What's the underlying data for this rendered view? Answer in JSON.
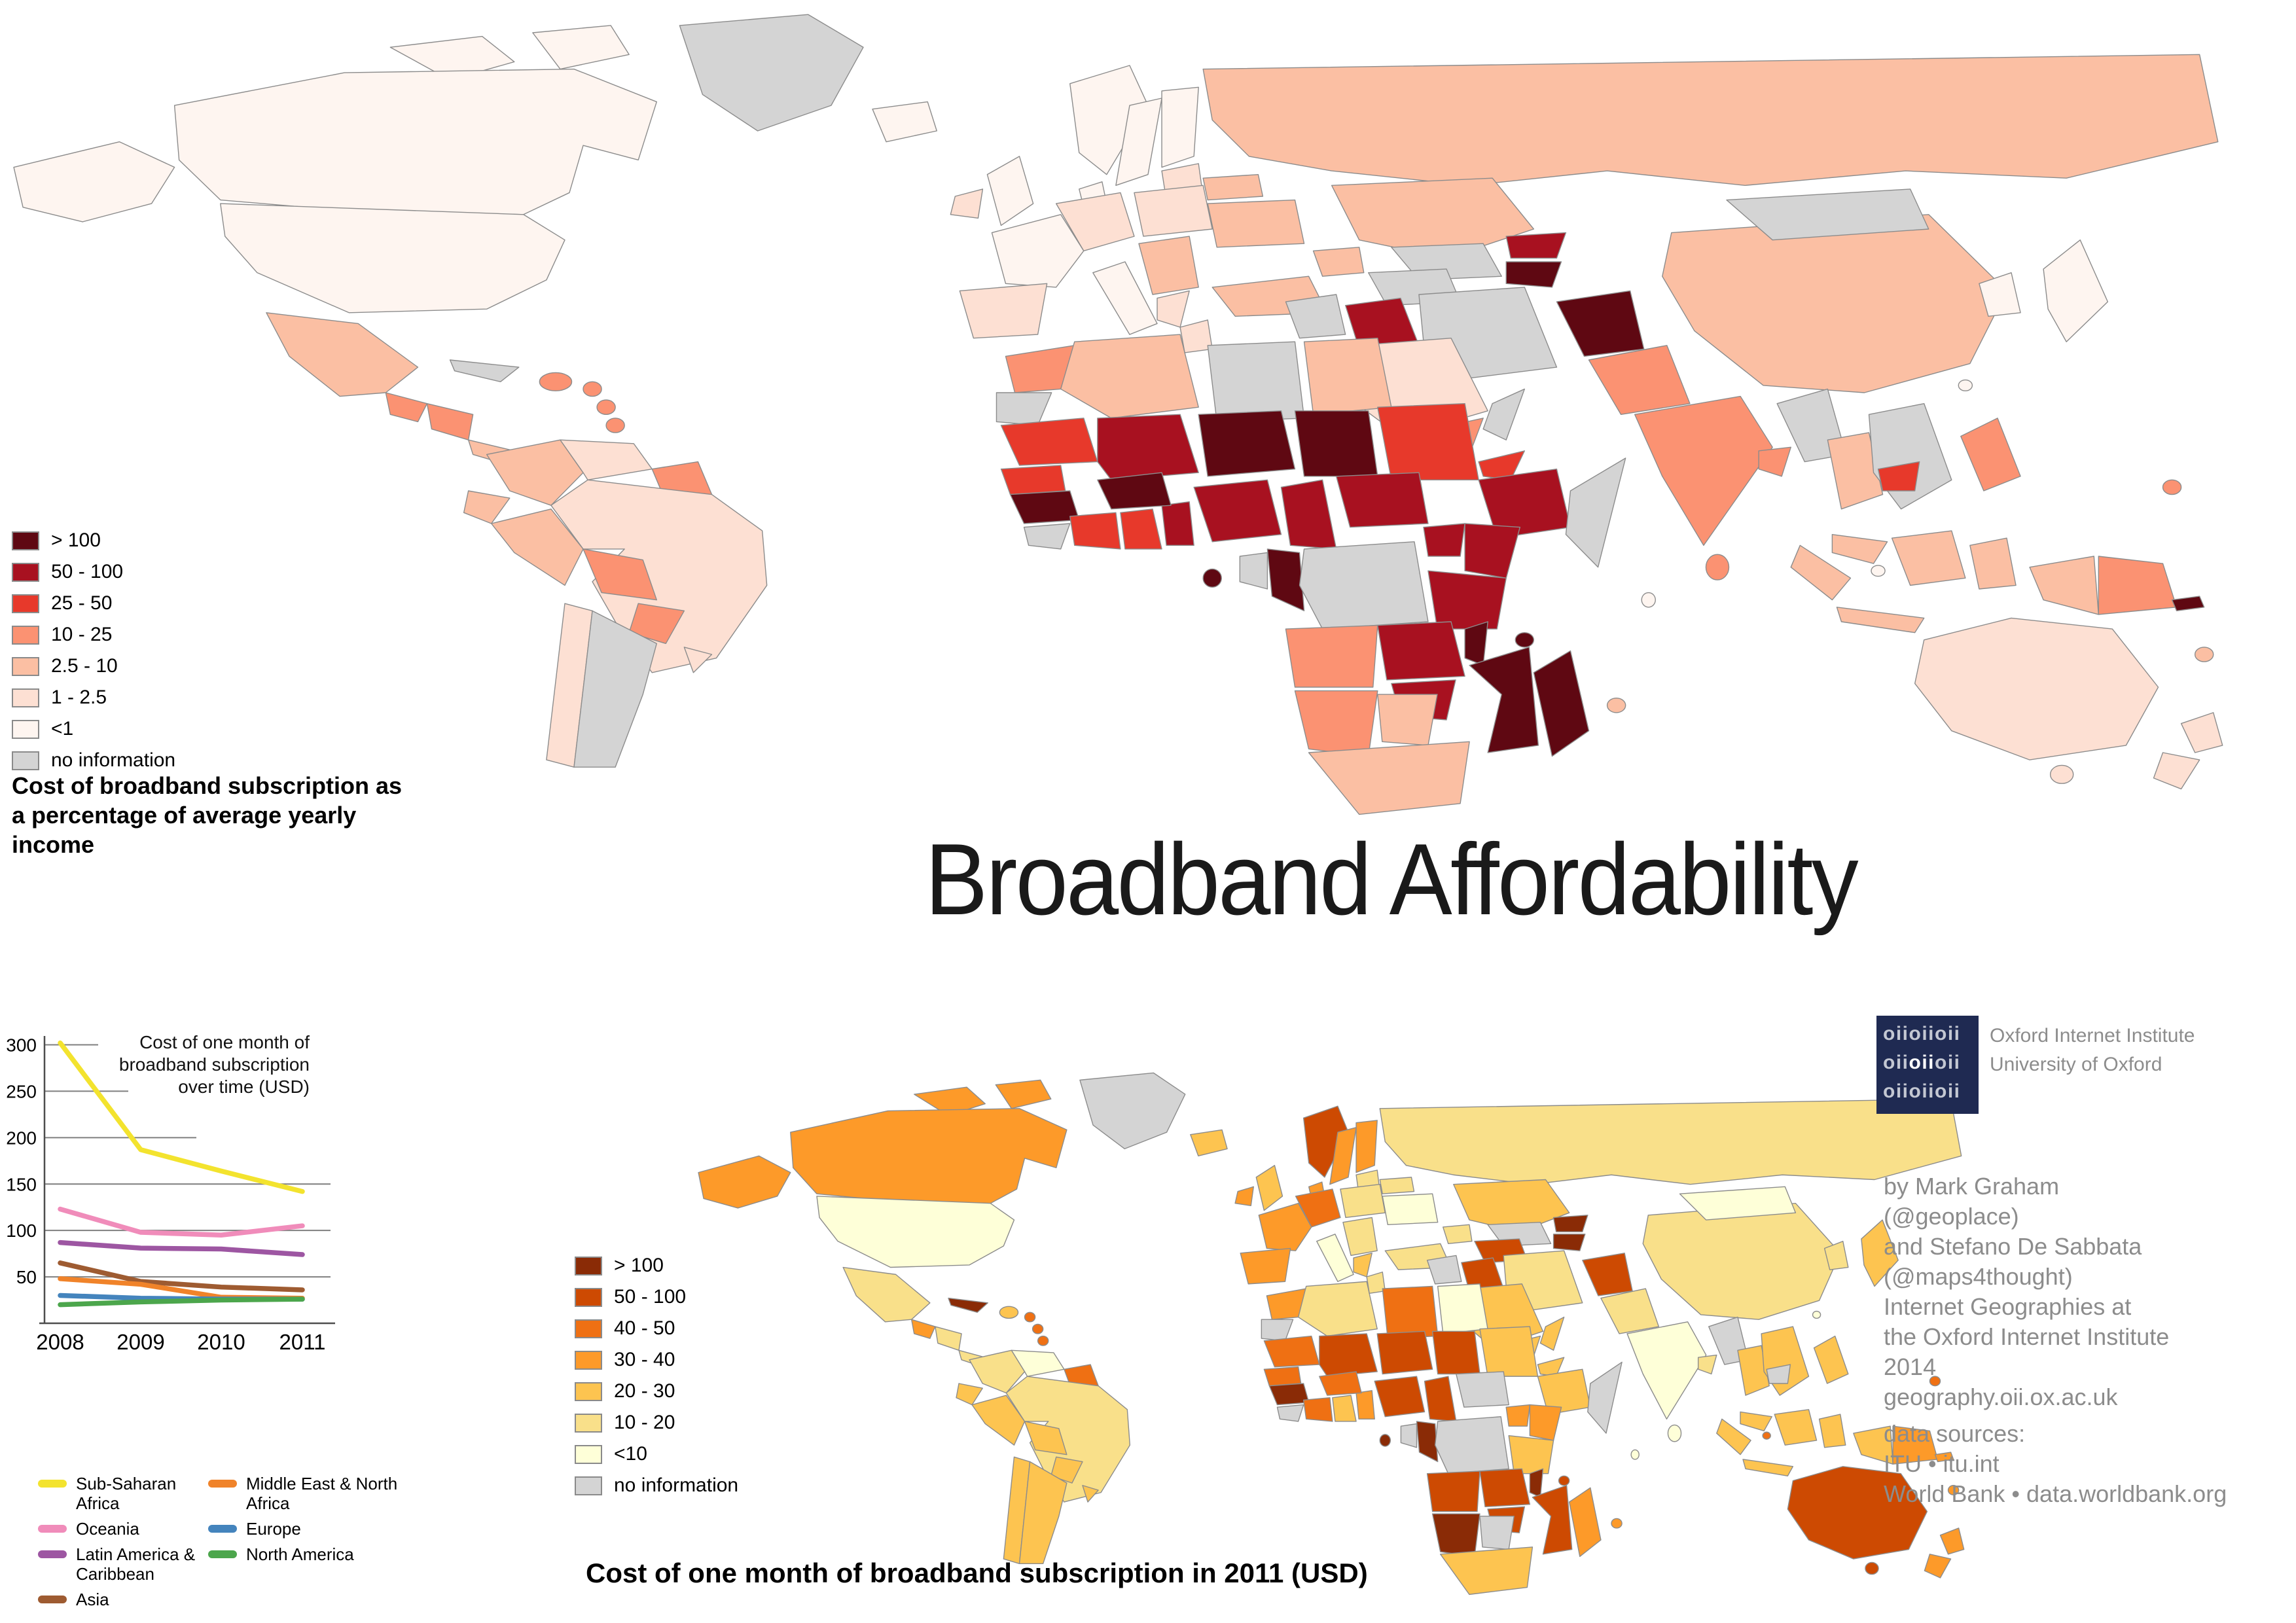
{
  "title": "Broadband Affordability",
  "logo": {
    "rows": [
      "oiioiioii",
      "oiioiioii",
      "oiioiioii"
    ],
    "highlight_row": 1,
    "highlight_start": 3,
    "highlight_end": 6,
    "org_line1": "Oxford Internet Institute",
    "org_line2": "University of Oxford",
    "background": "#1f2a52"
  },
  "credits": {
    "lines": [
      "by Mark Graham",
      "(@geoplace)",
      "and Stefano De Sabbata",
      "(@maps4thought)",
      "Internet Geographies at",
      "the Oxford Internet Institute",
      "2014",
      "geography.oii.ox.ac.uk"
    ]
  },
  "sources": {
    "lines": [
      "data sources:",
      "ITU • itu.int",
      "World Bank • data.worldbank.org"
    ]
  },
  "chart_data": [
    {
      "type": "choropleth",
      "id": "income_share",
      "caption": "Cost of broadband subscription as a percentage of average yearly income",
      "legend_position": "left",
      "legend": [
        {
          "label": "> 100",
          "color": "#5f0812"
        },
        {
          "label": "50 - 100",
          "color": "#a81120"
        },
        {
          "label": "25 - 50",
          "color": "#e7392b"
        },
        {
          "label": "10 - 25",
          "color": "#fb9272"
        },
        {
          "label": "2.5 - 10",
          "color": "#fbbfa3"
        },
        {
          "label": "1 - 2.5",
          "color": "#fde0d3"
        },
        {
          "label": "<1",
          "color": "#fef5f0"
        },
        {
          "label": "no information",
          "color": "#d4d4d4"
        }
      ],
      "regions": {
        "greenland": 7,
        "arctic_islands": 6,
        "alaska": 6,
        "canada": 6,
        "usa": 6,
        "mexico": 4,
        "guatemala": 3,
        "honduras_nicaragua": 3,
        "panama_cr": 4,
        "cuba": 7,
        "hispaniola": 3,
        "carib1": 3,
        "carib2": 3,
        "carib3": 3,
        "colombia": 4,
        "venezuela": 5,
        "guyanas": 3,
        "ecuador": 4,
        "peru": 4,
        "brazil": 5,
        "bolivia": 3,
        "paraguay": 3,
        "chile": 5,
        "argentina": 7,
        "uruguay": 5,
        "iceland": 6,
        "ireland": 5,
        "uk": 6,
        "norway": 6,
        "sweden": 6,
        "finland": 6,
        "baltics": 5,
        "denmark": 6,
        "germany": 5,
        "france": 6,
        "iberia": 5,
        "italy": 6,
        "poland": 5,
        "balkans": 4,
        "greece": 5,
        "belarus": 4,
        "ukraine": 4,
        "turkey": 4,
        "caucasus": 4,
        "russia": 4,
        "kazakhstan": 4,
        "uzbekistan": 7,
        "turkmenistan": 7,
        "kyrgyzstan": 1,
        "tajikistan": 0,
        "syria": 7,
        "iraq": 1,
        "iran": 7,
        "afghanistan": 0,
        "pakistan": 3,
        "saudi": 5,
        "yemen": 3,
        "oman": 7,
        "india": 3,
        "bangladesh": 3,
        "srilanka": 3,
        "china": 4,
        "mongolia": 7,
        "korea": 6,
        "japan": 6,
        "myanmar": 7,
        "thailand": 4,
        "indochina": 7,
        "cambodia": 2,
        "malaysia": 4,
        "sumatra": 4,
        "java": 4,
        "borneo": 4,
        "sulawesi": 4,
        "philippines": 3,
        "png_west": 4,
        "png_east": 3,
        "australia": 5,
        "tasmania": 5,
        "nz_north": 5,
        "nz_south": 5,
        "fiji": 4,
        "solomon": 0,
        "morocco": 3,
        "wsahara": 7,
        "algeria": 4,
        "tunisia": 5,
        "libya": 7,
        "egypt": 4,
        "mauritania": 2,
        "mali": 1,
        "niger": 0,
        "chad": 0,
        "sudan": 2,
        "eritrea": 2,
        "senegal": 2,
        "guinea": 0,
        "sierra": 7,
        "ivory": 2,
        "ghana": 2,
        "togo_benin": 1,
        "burkina": 0,
        "nigeria": 1,
        "cameroon": 1,
        "car": 1,
        "ethiopia": 1,
        "somalia": 7,
        "uganda": 1,
        "kenya": 1,
        "gabon": 7,
        "congo": 0,
        "drc": 7,
        "tanzania": 1,
        "angola": 3,
        "zambia": 1,
        "malawi": 0,
        "mozambique": 0,
        "zimbabwe": 1,
        "namibia": 3,
        "botswana": 4,
        "south_africa": 4,
        "madagascar": 0,
        "sao_tome": 0,
        "comoros": 0,
        "mauritius": 4,
        "hk": 6,
        "singapore": 6,
        "maldives": 6,
        "guam": 3
      }
    },
    {
      "type": "line",
      "id": "cost_over_time",
      "title": "Cost of one month of broadband subscription over time (USD)",
      "x": [
        2008,
        2009,
        2010,
        2011
      ],
      "yticks": [
        50,
        100,
        150,
        200,
        250,
        300
      ],
      "ylim": [
        0,
        320
      ],
      "grid": "partial-horizontal",
      "legend_position": "below",
      "legend_columns": {
        "left": [
          0,
          1,
          2,
          3
        ],
        "right": [
          4,
          5,
          6
        ]
      },
      "series": [
        {
          "name": "Sub-Saharan Africa",
          "color": "#f3e32e",
          "values": [
            302,
            187,
            164,
            142
          ]
        },
        {
          "name": "Oceania",
          "color": "#f08cba",
          "values": [
            123,
            98,
            95,
            105
          ]
        },
        {
          "name": "Latin America & Caribbean",
          "color": "#9d56a2",
          "values": [
            87,
            81,
            80,
            74
          ]
        },
        {
          "name": "Asia",
          "color": "#9e5b31",
          "values": [
            65,
            45,
            39,
            36
          ]
        },
        {
          "name": "Middle East & North Africa",
          "color": "#f0832a",
          "values": [
            48,
            42,
            28,
            27
          ]
        },
        {
          "name": "Europe",
          "color": "#4484bd",
          "values": [
            30,
            27,
            26,
            26
          ]
        },
        {
          "name": "North America",
          "color": "#4ca64c",
          "values": [
            20,
            23,
            25,
            26
          ]
        }
      ]
    },
    {
      "type": "choropleth",
      "id": "usd_2011",
      "caption": "Cost of one month of broadband subscription in 2011 (USD)",
      "legend_position": "left",
      "legend": [
        {
          "label": "> 100",
          "color": "#8a2b06"
        },
        {
          "label": "50 - 100",
          "color": "#cd4a02"
        },
        {
          "label": "40 - 50",
          "color": "#ef7013"
        },
        {
          "label": "30 - 40",
          "color": "#fd9a29"
        },
        {
          "label": "20 - 30",
          "color": "#fdc450"
        },
        {
          "label": "10 - 20",
          "color": "#f9e08a"
        },
        {
          "label": "<10",
          "color": "#feffd8"
        },
        {
          "label": "no information",
          "color": "#d4d4d4"
        }
      ],
      "regions": {
        "greenland": 7,
        "arctic_islands": 3,
        "alaska": 3,
        "canada": 3,
        "usa": 6,
        "mexico": 5,
        "guatemala": 3,
        "honduras_nicaragua": 5,
        "panama_cr": 5,
        "cuba": 0,
        "hispaniola": 4,
        "carib1": 2,
        "carib2": 2,
        "carib3": 2,
        "colombia": 5,
        "venezuela": 6,
        "guyanas": 2,
        "ecuador": 4,
        "peru": 4,
        "brazil": 5,
        "bolivia": 4,
        "paraguay": 4,
        "chile": 4,
        "argentina": 4,
        "uruguay": 4,
        "iceland": 4,
        "ireland": 3,
        "uk": 4,
        "norway": 1,
        "sweden": 3,
        "finland": 3,
        "baltics": 5,
        "denmark": 3,
        "germany": 2,
        "france": 3,
        "iberia": 3,
        "italy": 6,
        "poland": 5,
        "balkans": 5,
        "greece": 4,
        "belarus": 5,
        "ukraine": 6,
        "turkey": 5,
        "caucasus": 5,
        "russia": 5,
        "kazakhstan": 4,
        "uzbekistan": 7,
        "turkmenistan": 1,
        "kyrgyzstan": 0,
        "tajikistan": 0,
        "syria": 7,
        "iraq": 1,
        "iran": 5,
        "afghanistan": 1,
        "pakistan": 5,
        "saudi": 4,
        "yemen": 4,
        "oman": 4,
        "india": 6,
        "bangladesh": 5,
        "srilanka": 6,
        "china": 5,
        "mongolia": 6,
        "korea": 5,
        "japan": 4,
        "myanmar": 7,
        "thailand": 4,
        "indochina": 4,
        "cambodia": 7,
        "malaysia": 4,
        "sumatra": 4,
        "java": 4,
        "borneo": 4,
        "sulawesi": 4,
        "philippines": 4,
        "png_west": 4,
        "png_east": 3,
        "australia": 1,
        "tasmania": 1,
        "nz_north": 3,
        "nz_south": 3,
        "fiji": 3,
        "solomon": 3,
        "morocco": 3,
        "wsahara": 7,
        "algeria": 5,
        "tunisia": 5,
        "libya": 2,
        "egypt": 6,
        "mauritania": 2,
        "mali": 1,
        "niger": 1,
        "chad": 1,
        "sudan": 4,
        "eritrea": 4,
        "senegal": 2,
        "guinea": 0,
        "sierra": 7,
        "ivory": 2,
        "ghana": 4,
        "togo_benin": 3,
        "burkina": 2,
        "nigeria": 1,
        "cameroon": 1,
        "car": 7,
        "ethiopia": 4,
        "somalia": 7,
        "uganda": 3,
        "kenya": 3,
        "gabon": 7,
        "congo": 0,
        "drc": 7,
        "tanzania": 4,
        "angola": 1,
        "zambia": 1,
        "malawi": 0,
        "mozambique": 1,
        "zimbabwe": 1,
        "namibia": 0,
        "botswana": 7,
        "south_africa": 4,
        "madagascar": 3,
        "sao_tome": 0,
        "comoros": 1,
        "mauritius": 3,
        "hk": 6,
        "singapore": 2,
        "maldives": 6,
        "guam": 2
      }
    }
  ]
}
